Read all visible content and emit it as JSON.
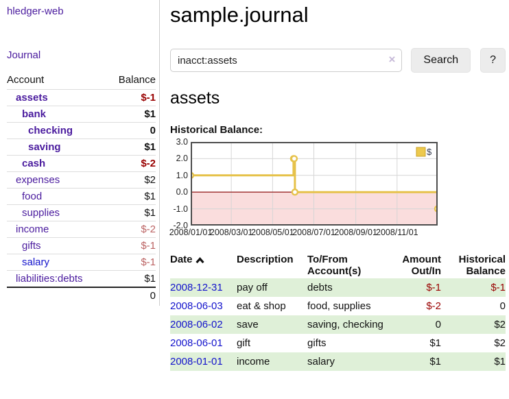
{
  "sidebar": {
    "brand": "hledger-web",
    "journal_link": "Journal",
    "accounts_header": {
      "account": "Account",
      "balance": "Balance"
    },
    "accounts": [
      {
        "name": "assets",
        "balance": "$-1",
        "depth": 1,
        "bold": true,
        "balance_class": "neg-strong"
      },
      {
        "name": "bank",
        "balance": "$1",
        "depth": 2,
        "bold": true,
        "balance_class": ""
      },
      {
        "name": "checking",
        "balance": "0",
        "depth": 3,
        "bold": true,
        "balance_class": ""
      },
      {
        "name": "saving",
        "balance": "$1",
        "depth": 3,
        "bold": true,
        "balance_class": ""
      },
      {
        "name": "cash",
        "balance": "$-2",
        "depth": 2,
        "bold": true,
        "balance_class": "neg-strong"
      },
      {
        "name": "expenses",
        "balance": "$2",
        "depth": 1,
        "bold": false,
        "balance_class": ""
      },
      {
        "name": "food",
        "balance": "$1",
        "depth": 2,
        "bold": false,
        "balance_class": ""
      },
      {
        "name": "supplies",
        "balance": "$1",
        "depth": 2,
        "bold": false,
        "balance_class": ""
      },
      {
        "name": "income",
        "balance": "$-2",
        "depth": 1,
        "bold": false,
        "balance_class": "neg-soft"
      },
      {
        "name": "gifts",
        "balance": "$-1",
        "depth": 2,
        "bold": false,
        "balance_class": "neg-soft"
      },
      {
        "name": "salary",
        "balance": "$-1",
        "depth": 2,
        "bold": false,
        "balance_class": "neg-soft",
        "blue": true
      },
      {
        "name": "liabilities:debts",
        "balance": "$1",
        "depth": 1,
        "bold": false,
        "balance_class": ""
      }
    ],
    "total": "0"
  },
  "header": {
    "title": "sample.journal"
  },
  "search": {
    "query": "inacct:assets",
    "clear_icon": "×",
    "search_label": "Search",
    "help_label": "?"
  },
  "account_page": {
    "title": "assets",
    "chart_title": "Historical Balance:"
  },
  "chart_data": {
    "type": "line",
    "title": "Historical Balance:",
    "step": "after",
    "series": [
      {
        "name": "$",
        "color": "#e6c24a",
        "points": [
          [
            "2008-01-01",
            1
          ],
          [
            "2008-06-01",
            2
          ],
          [
            "2008-06-02",
            2
          ],
          [
            "2008-06-03",
            0
          ],
          [
            "2008-12-31",
            -1
          ]
        ]
      }
    ],
    "x_range": [
      "2008-01-01",
      "2008-12-31"
    ],
    "ylim": [
      -2,
      3
    ],
    "y_ticks": [
      3.0,
      2.0,
      1.0,
      0.0,
      -1.0,
      -2.0
    ],
    "x_ticks": [
      "2008/01/01",
      "2008/03/01",
      "2008/05/01",
      "2008/07/01",
      "2008/09/01",
      "2008/11/01"
    ],
    "grid": true,
    "negative_region_color": "#fadddd",
    "zero_line_color": "#8b0000",
    "legend": {
      "label": "$",
      "position": "top-right"
    }
  },
  "register": {
    "columns": [
      "Date",
      "Description",
      "To/From Account(s)",
      "Amount Out/In",
      "Historical Balance"
    ],
    "rows": [
      {
        "date": "2008-12-31",
        "description": "pay off",
        "accounts": "debts",
        "amount": "$-1",
        "balance": "$-1",
        "amount_neg": true,
        "balance_neg": true
      },
      {
        "date": "2008-06-03",
        "description": "eat & shop",
        "accounts": "food, supplies",
        "amount": "$-2",
        "balance": "0",
        "amount_neg": true,
        "balance_neg": false
      },
      {
        "date": "2008-06-02",
        "description": "save",
        "accounts": "saving, checking",
        "amount": "0",
        "balance": "$2",
        "amount_neg": false,
        "balance_neg": false
      },
      {
        "date": "2008-06-01",
        "description": "gift",
        "accounts": "gifts",
        "amount": "$1",
        "balance": "$2",
        "amount_neg": false,
        "balance_neg": false
      },
      {
        "date": "2008-01-01",
        "description": "income",
        "accounts": "salary",
        "amount": "$1",
        "balance": "$1",
        "amount_neg": false,
        "balance_neg": false
      }
    ]
  }
}
